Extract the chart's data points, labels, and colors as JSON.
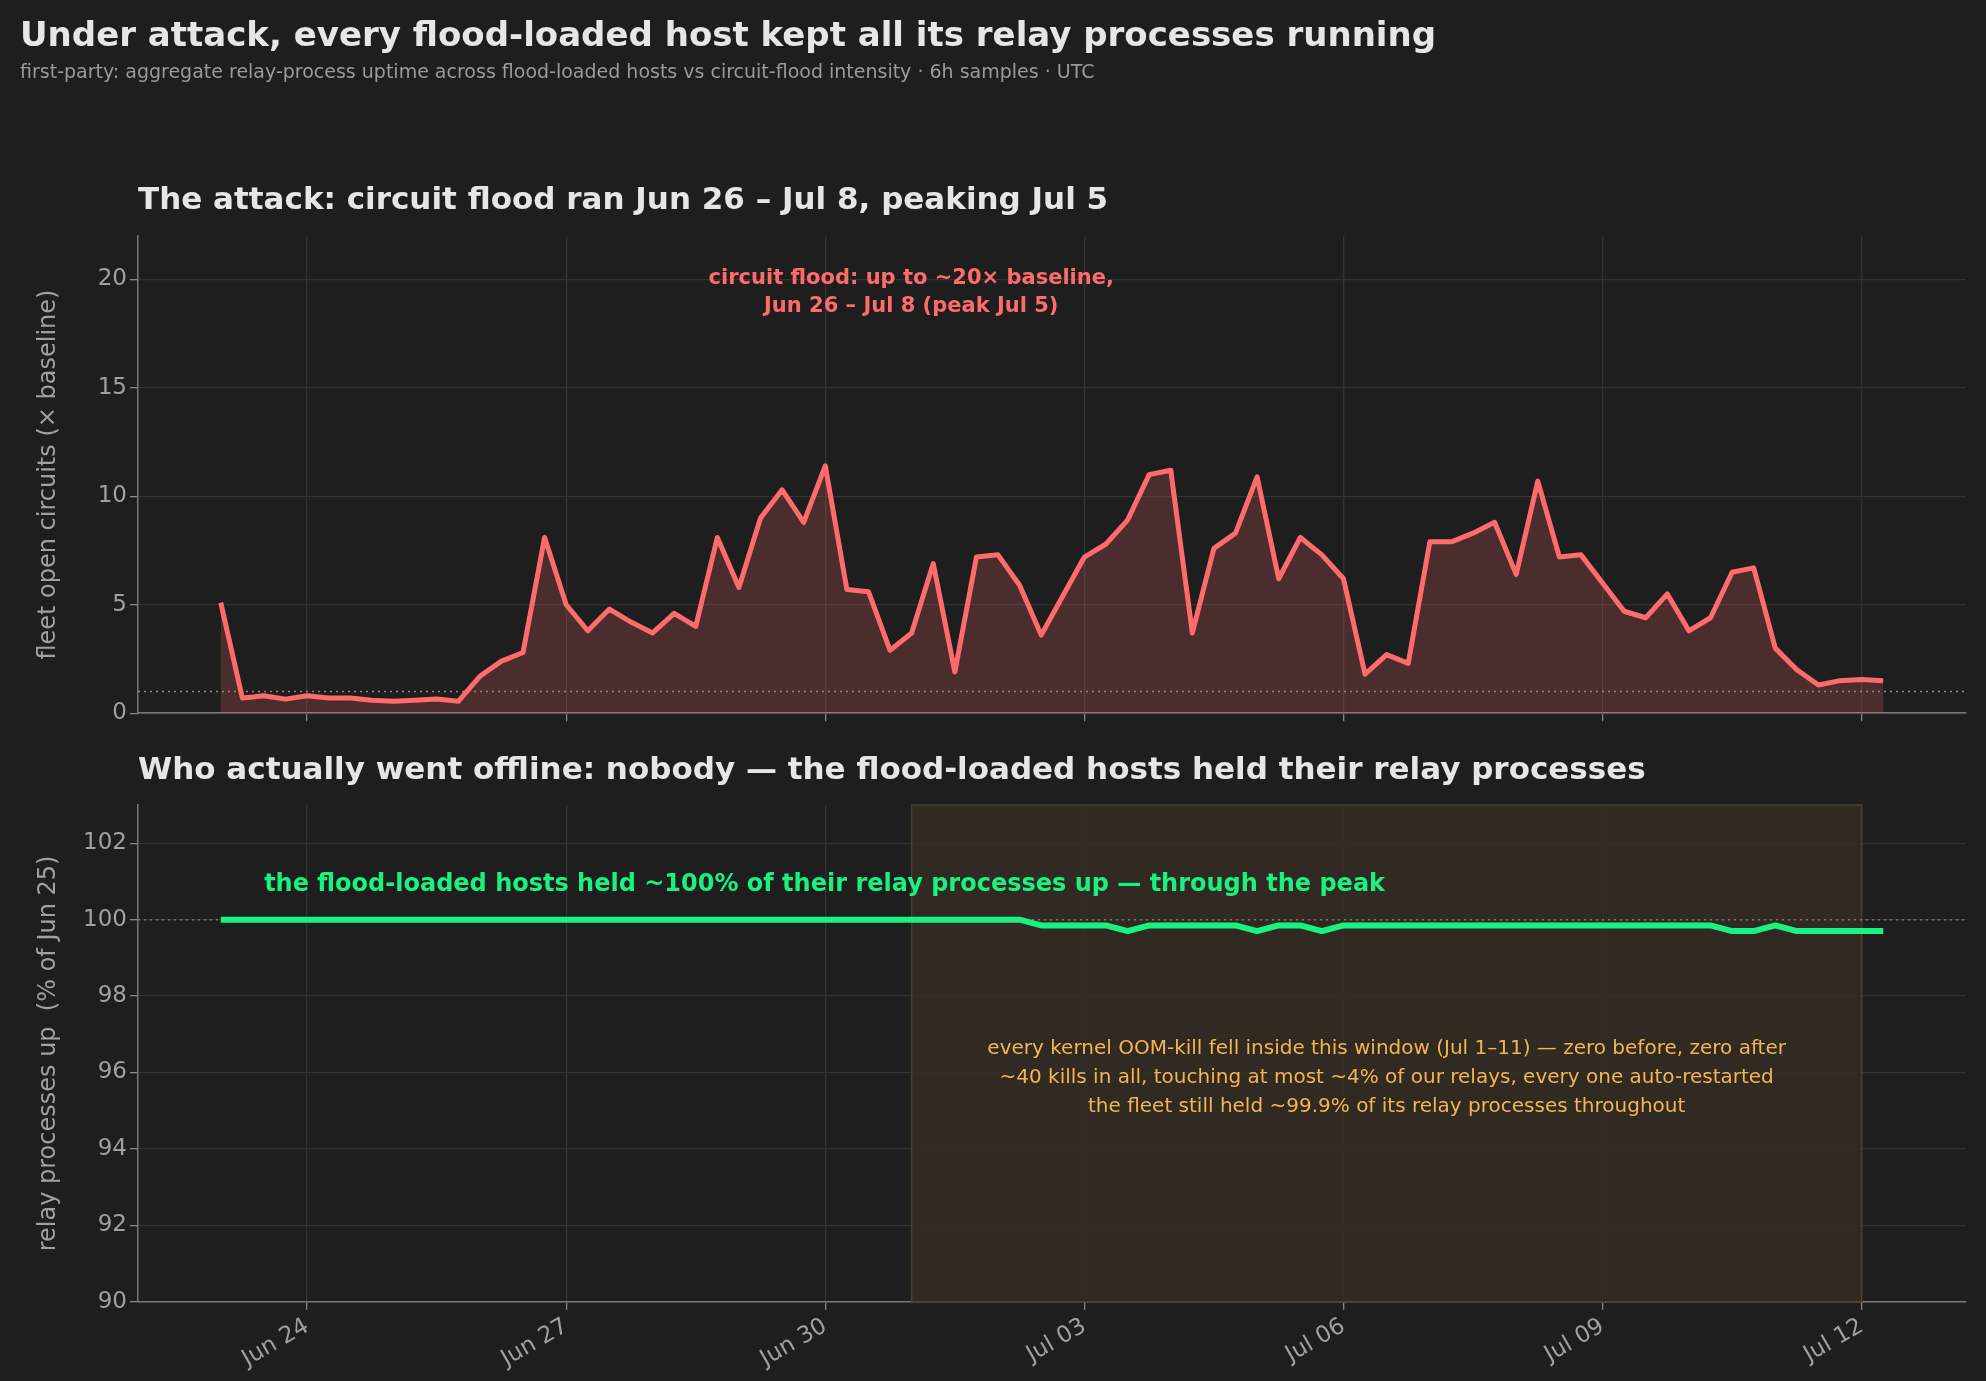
{
  "chart_data": [
    {
      "type": "area",
      "title": "Under attack, every flood-loaded host kept all its relay processes running",
      "subtitle": "first-party: aggregate relay-process uptime across flood-loaded hosts vs circuit-flood intensity · 6h samples · UTC",
      "ylabel": "fleet open circuits (× baseline)",
      "annotations": [
        "The attack: circuit flood ran Jun 26 – Jul 8, peaking Jul 5",
        "circuit flood: up to ~20× baseline,\nJun 26 – Jul 8 (peak Jul 5)"
      ],
      "x": [
        "--06-23T00:00",
        "--06-23T06:00",
        "--06-23T12:00",
        "--06-23T18:00",
        "--06-24T00:00",
        "--06-24T06:00",
        "--06-24T12:00",
        "--06-24T18:00",
        "--06-25T00:00",
        "--06-25T06:00",
        "--06-25T12:00",
        "--06-25T18:00",
        "--06-26T00:00",
        "--06-26T06:00",
        "--06-26T12:00",
        "--06-26T18:00",
        "--06-27T00:00",
        "--06-27T06:00",
        "--06-27T12:00",
        "--06-27T18:00",
        "--06-28T00:00",
        "--06-28T06:00",
        "--06-28T12:00",
        "--06-28T18:00",
        "--06-29T00:00",
        "--06-29T06:00",
        "--06-29T12:00",
        "--06-29T18:00",
        "--06-30T00:00",
        "--06-30T06:00",
        "--06-30T12:00",
        "--06-30T18:00",
        "--07-01T00:00",
        "--07-01T06:00",
        "--07-01T12:00",
        "--07-01T18:00",
        "--07-02T00:00",
        "--07-02T06:00",
        "--07-02T12:00",
        "--07-02T18:00",
        "--07-03T00:00",
        "--07-03T06:00",
        "--07-03T12:00",
        "--07-03T18:00",
        "--07-04T00:00",
        "--07-04T06:00",
        "--07-04T12:00",
        "--07-04T18:00",
        "--07-05T00:00",
        "--07-05T06:00",
        "--07-05T12:00",
        "--07-05T18:00",
        "--07-06T00:00",
        "--07-06T06:00",
        "--07-06T12:00",
        "--07-06T18:00",
        "--07-07T00:00",
        "--07-07T06:00",
        "--07-07T12:00",
        "--07-07T18:00",
        "--07-08T00:00",
        "--07-08T06:00",
        "--07-08T12:00",
        "--07-08T18:00",
        "--07-09T00:00",
        "--07-09T06:00",
        "--07-09T12:00",
        "--07-09T18:00",
        "--07-10T00:00",
        "--07-10T06:00",
        "--07-10T12:00",
        "--07-10T18:00",
        "--07-11T00:00",
        "--07-11T06:00",
        "--07-11T12:00",
        "--07-11T18:00",
        "--07-12T00:00",
        "--07-12T06:00"
      ],
      "series": [
        {
          "color": "#ff6b6b",
          "values": [
            5.1,
            0.7,
            0.8,
            0.65,
            0.8,
            0.7,
            0.7,
            0.6,
            0.55,
            0.6,
            0.65,
            0.55,
            1.7,
            2.4,
            2.8,
            8.1,
            5.0,
            3.8,
            4.8,
            4.2,
            3.7,
            4.6,
            4.0,
            8.1,
            5.8,
            9.0,
            10.3,
            8.8,
            11.4,
            5.7,
            5.6,
            2.9,
            3.7,
            6.9,
            1.9,
            7.2,
            7.3,
            5.9,
            3.6,
            5.4,
            7.2,
            7.8,
            8.9,
            11.0,
            11.2,
            3.7,
            7.6,
            8.3,
            10.9,
            6.2,
            8.1,
            7.3,
            6.2,
            1.8,
            2.7,
            2.3,
            7.9,
            7.9,
            8.3,
            8.8,
            6.4,
            10.7,
            7.2,
            7.3,
            6.0,
            4.7,
            4.4,
            5.5,
            3.8,
            4.4,
            6.5,
            6.7,
            3.0,
            2.0,
            1.3,
            1.5,
            1.55,
            1.5
          ]
        }
      ],
      "xlim": [
        "--06-22T01:00",
        "--07-13T05:00"
      ],
      "xticks": [
        {
          "value": "--06-24",
          "label": "Jun 24"
        },
        {
          "value": "--06-27",
          "label": "Jun 27"
        },
        {
          "value": "--06-30",
          "label": "Jun 30"
        },
        {
          "value": "--07-03",
          "label": "Jul 03"
        },
        {
          "value": "--07-06",
          "label": "Jul 06"
        },
        {
          "value": "--07-09",
          "label": "Jul 09"
        },
        {
          "value": "--07-12",
          "label": "Jul 12"
        }
      ],
      "ylim": [
        0,
        22
      ],
      "yticks": [
        0,
        5,
        10,
        15,
        20
      ],
      "grid": true,
      "tick_labels": "y",
      "ref_lines": [
        {
          "axis": "y",
          "value": 1,
          "color": "#888888",
          "line_style": "dotted"
        }
      ]
    },
    {
      "type": "line",
      "title": "Who actually went offline: nobody — the flood-loaded hosts held their relay processes",
      "ylabel": "relay processes up  (% of Jun 25)",
      "annotations": [
        "the flood-loaded hosts held ~100% of their relay processes up — through the peak"
      ],
      "x": [
        "--06-23T00:00",
        "--06-23T06:00",
        "--06-23T12:00",
        "--06-23T18:00",
        "--06-24T00:00",
        "--06-24T06:00",
        "--06-24T12:00",
        "--06-24T18:00",
        "--06-25T00:00",
        "--06-25T06:00",
        "--06-25T12:00",
        "--06-25T18:00",
        "--06-26T00:00",
        "--06-26T06:00",
        "--06-26T12:00",
        "--06-26T18:00",
        "--06-27T00:00",
        "--06-27T06:00",
        "--06-27T12:00",
        "--06-27T18:00",
        "--06-28T00:00",
        "--06-28T06:00",
        "--06-28T12:00",
        "--06-28T18:00",
        "--06-29T00:00",
        "--06-29T06:00",
        "--06-29T12:00",
        "--06-29T18:00",
        "--06-30T00:00",
        "--06-30T06:00",
        "--06-30T12:00",
        "--06-30T18:00",
        "--07-01T00:00",
        "--07-01T06:00",
        "--07-01T12:00",
        "--07-01T18:00",
        "--07-02T00:00",
        "--07-02T06:00",
        "--07-02T12:00",
        "--07-02T18:00",
        "--07-03T00:00",
        "--07-03T06:00",
        "--07-03T12:00",
        "--07-03T18:00",
        "--07-04T00:00",
        "--07-04T06:00",
        "--07-04T12:00",
        "--07-04T18:00",
        "--07-05T00:00",
        "--07-05T06:00",
        "--07-05T12:00",
        "--07-05T18:00",
        "--07-06T00:00",
        "--07-06T06:00",
        "--07-06T12:00",
        "--07-06T18:00",
        "--07-07T00:00",
        "--07-07T06:00",
        "--07-07T12:00",
        "--07-07T18:00",
        "--07-08T00:00",
        "--07-08T06:00",
        "--07-08T12:00",
        "--07-08T18:00",
        "--07-09T00:00",
        "--07-09T06:00",
        "--07-09T12:00",
        "--07-09T18:00",
        "--07-10T00:00",
        "--07-10T06:00",
        "--07-10T12:00",
        "--07-10T18:00",
        "--07-11T00:00",
        "--07-11T06:00",
        "--07-11T12:00",
        "--07-11T18:00",
        "--07-12T00:00",
        "--07-12T06:00"
      ],
      "series": [
        {
          "color": "#19f27e",
          "values": [
            100,
            100,
            100,
            100,
            100,
            100,
            100,
            100,
            100,
            100,
            100,
            100,
            100,
            100,
            100,
            100,
            100,
            100,
            100,
            100,
            100,
            100,
            100,
            100,
            100,
            100,
            100,
            100,
            100,
            100,
            100,
            100,
            100,
            100,
            100,
            100,
            100,
            100,
            99.85,
            99.85,
            99.85,
            99.85,
            99.7,
            99.85,
            99.85,
            99.85,
            99.85,
            99.85,
            99.7,
            99.85,
            99.85,
            99.7,
            99.85,
            99.85,
            99.85,
            99.85,
            99.85,
            99.85,
            99.85,
            99.85,
            99.85,
            99.85,
            99.85,
            99.85,
            99.85,
            99.85,
            99.85,
            99.85,
            99.85,
            99.85,
            99.7,
            99.7,
            99.85,
            99.7,
            99.7,
            99.7,
            99.7,
            99.7
          ]
        }
      ],
      "xlim": [
        "--06-22T01:00",
        "--07-13T05:00"
      ],
      "xticks": [
        {
          "value": "--06-24",
          "label": "Jun 24"
        },
        {
          "value": "--06-27",
          "label": "Jun 27"
        },
        {
          "value": "--06-30",
          "label": "Jun 30"
        },
        {
          "value": "--07-03",
          "label": "Jul 03"
        },
        {
          "value": "--07-06",
          "label": "Jul 06"
        },
        {
          "value": "--07-09",
          "label": "Jul 09"
        },
        {
          "value": "--07-12",
          "label": "Jul 12"
        }
      ],
      "ylim": [
        90,
        103
      ],
      "yticks": [
        90,
        92,
        94,
        96,
        98,
        100,
        102
      ],
      "grid": true,
      "ref_lines": [
        {
          "axis": "y",
          "value": 100,
          "color": "#777777",
          "line_style": "dotted"
        }
      ],
      "bands": [
        {
          "axis": "x",
          "from": "--07-01",
          "to": "--07-12",
          "color": "#352d23",
          "label": "every kernel OOM-kill fell inside this window (Jul 1–11) — zero before, zero after\n~40 kills in all, touching at most ~4% of our relays, every one auto-restarted\nthe fleet still held ~99.9% of its relay processes throughout"
        }
      ]
    }
  ]
}
